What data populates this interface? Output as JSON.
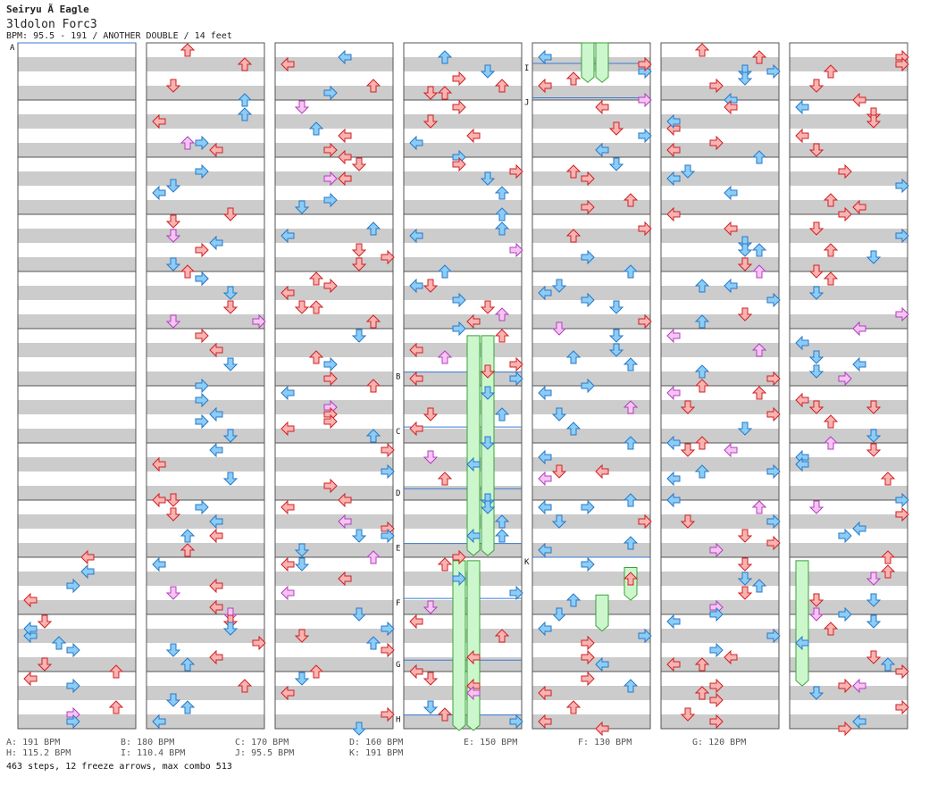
{
  "song": {
    "title": "Seiryu Ã  Eagle",
    "artist": "3ldolon Forc3",
    "meta": "BPM: 95.5 - 191 / ANOTHER DOUBLE / 14 feet"
  },
  "colors": {
    "red": "#f9b3b3",
    "blue": "#8ccdf7",
    "pink": "#f7c4f2",
    "freeze": "#ccf7cc",
    "band": "#cccccc"
  },
  "bpm_markers": [
    {
      "label": "A",
      "column": 1,
      "offset": 0.0
    },
    {
      "label": "B",
      "column": 4,
      "offset": 0.48
    },
    {
      "label": "C",
      "column": 4,
      "offset": 0.56
    },
    {
      "label": "D",
      "column": 4,
      "offset": 0.65
    },
    {
      "label": "E",
      "column": 4,
      "offset": 0.73
    },
    {
      "label": "F",
      "column": 4,
      "offset": 0.81
    },
    {
      "label": "G",
      "column": 4,
      "offset": 0.9
    },
    {
      "label": "H",
      "column": 4,
      "offset": 0.98
    },
    {
      "label": "I",
      "column": 5,
      "offset": 0.03
    },
    {
      "label": "J",
      "column": 5,
      "offset": 0.08
    },
    {
      "label": "K",
      "column": 5,
      "offset": 0.75
    }
  ],
  "bpm_legend": [
    {
      "key": "A",
      "value": "191 BPM"
    },
    {
      "key": "B",
      "value": "180 BPM"
    },
    {
      "key": "C",
      "value": "170 BPM"
    },
    {
      "key": "D",
      "value": "160 BPM"
    },
    {
      "key": "E",
      "value": "150 BPM"
    },
    {
      "key": "F",
      "value": "130 BPM"
    },
    {
      "key": "G",
      "value": "120 BPM"
    },
    {
      "key": "H",
      "value": "115.2 BPM"
    },
    {
      "key": "I",
      "value": "110.4 BPM"
    },
    {
      "key": "J",
      "value": "95.5 BPM"
    },
    {
      "key": "K",
      "value": "191 BPM"
    }
  ],
  "stats": "463 steps, 12 freeze arrows, max combo 513"
}
